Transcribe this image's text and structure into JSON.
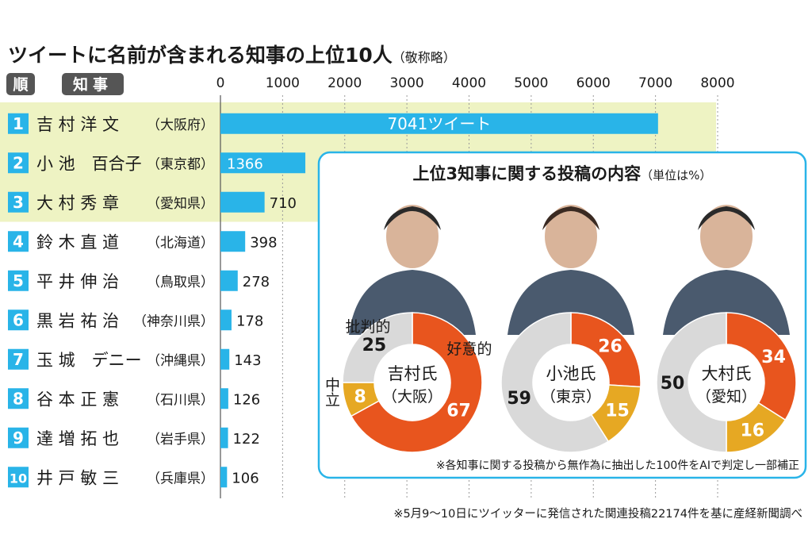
{
  "title": "ツイートに名前が含まれる知事の上位10人",
  "title_note": "（敬称略）",
  "header": {
    "rank": "順",
    "governor": "知事"
  },
  "chart_data": [
    {
      "type": "bar",
      "orientation": "horizontal",
      "title": "ツイートに名前が含まれる知事の上位10人",
      "xlim": [
        0,
        8000
      ],
      "ticks": [
        "0",
        "1000",
        "2000",
        "3000",
        "4000",
        "5000",
        "6000",
        "7000",
        "8000"
      ],
      "grid": true,
      "rows": [
        {
          "rank": "1",
          "name": "吉 村 洋 文",
          "pref": "（大阪府）",
          "value": 7041,
          "label": "7041ツイート",
          "highlight": true
        },
        {
          "rank": "2",
          "name": "小 池　百合子",
          "pref": "（東京都）",
          "value": 1366,
          "label": "1366",
          "highlight": true
        },
        {
          "rank": "3",
          "name": "大 村 秀 章",
          "pref": "（愛知県）",
          "value": 710,
          "label": "710",
          "highlight": true
        },
        {
          "rank": "4",
          "name": "鈴 木 直 道",
          "pref": "（北海道）",
          "value": 398,
          "label": "398",
          "highlight": false
        },
        {
          "rank": "5",
          "name": "平 井 伸 治",
          "pref": "（鳥取県）",
          "value": 278,
          "label": "278",
          "highlight": false
        },
        {
          "rank": "6",
          "name": "黒 岩 祐 治",
          "pref": "（神奈川県）",
          "value": 178,
          "label": "178",
          "highlight": false
        },
        {
          "rank": "7",
          "name": "玉 城　デニー",
          "pref": "（沖縄県）",
          "value": 143,
          "label": "143",
          "highlight": false
        },
        {
          "rank": "8",
          "name": "谷 本 正 憲",
          "pref": "（石川県）",
          "value": 126,
          "label": "126",
          "highlight": false
        },
        {
          "rank": "9",
          "name": "達 増 拓 也",
          "pref": "（岩手県）",
          "value": 122,
          "label": "122",
          "highlight": false
        },
        {
          "rank": "10",
          "name": "井 戸 敏 三",
          "pref": "（兵庫県）",
          "value": 106,
          "label": "106",
          "highlight": false
        }
      ]
    },
    {
      "type": "pie",
      "title": "上位3知事に関する投稿の内容",
      "unit_note": "（単位は%）",
      "categories": [
        "好意的",
        "中立",
        "批判的"
      ],
      "donuts": [
        {
          "name": "吉村氏",
          "area": "（大阪）",
          "values": [
            67,
            8,
            25
          ]
        },
        {
          "name": "小池氏",
          "area": "（東京）",
          "values": [
            26,
            15,
            59
          ]
        },
        {
          "name": "大村氏",
          "area": "（愛知）",
          "values": [
            34,
            16,
            50
          ]
        }
      ],
      "annotation": "※各知事に関する投稿から無作為に抽出した100件をAIで判定し一部補正"
    }
  ],
  "source_note": "※5月9～10日にツイッターに発信された関連投稿22174件を基に産経新聞調べ",
  "colors": {
    "bar": "#29b4e8",
    "highlight_bg": "#eef3c3",
    "rank_box": "#29b4e8",
    "header_pill": "#555555",
    "positive": "#e8551e",
    "neutral": "#e6a823",
    "negative": "#d9d9d9",
    "panel_border": "#29b4e8",
    "grid": "#9a9a9a"
  }
}
